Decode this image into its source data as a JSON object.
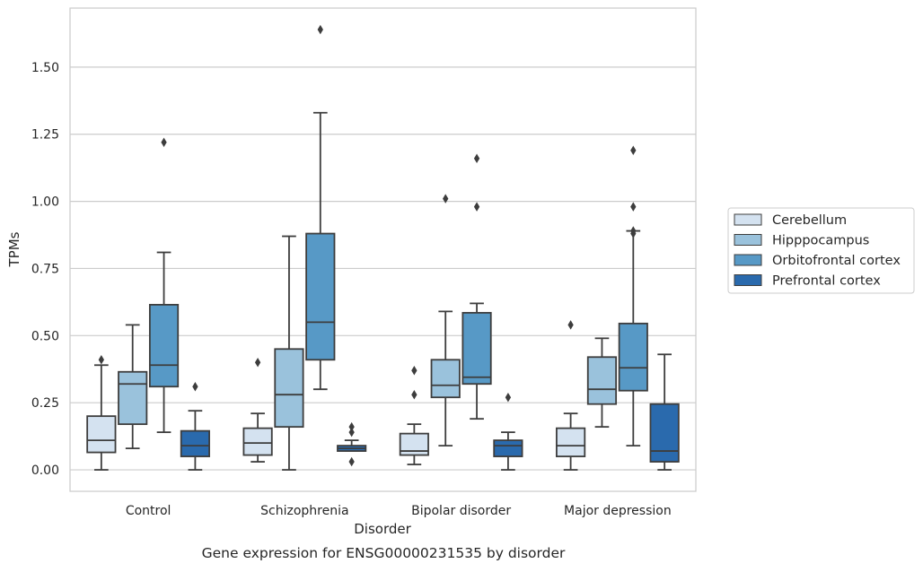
{
  "chart_data": {
    "type": "boxplot",
    "title": "",
    "caption": "Gene expression for ENSG00000231535 by disorder",
    "xlabel": "Disorder",
    "ylabel": "TPMs",
    "ylim": [
      -0.08,
      1.72
    ],
    "y_ticks": [
      0.0,
      0.25,
      0.5,
      0.75,
      1.0,
      1.25,
      1.5
    ],
    "y_tick_labels": [
      "0.00",
      "0.25",
      "0.50",
      "0.75",
      "1.00",
      "1.25",
      "1.50"
    ],
    "grid": "horizontal",
    "legend_position": "outside-right",
    "categories": [
      "Control",
      "Schizophrenia",
      "Bipolar disorder",
      "Major depression"
    ],
    "series": [
      {
        "name": "Cerebellum",
        "color": "#d4e2f0",
        "boxes": [
          {
            "whisker_low": 0.0,
            "q1": 0.065,
            "median": 0.11,
            "q3": 0.2,
            "whisker_high": 0.39,
            "outliers": [
              0.41
            ]
          },
          {
            "whisker_low": 0.03,
            "q1": 0.055,
            "median": 0.1,
            "q3": 0.155,
            "whisker_high": 0.21,
            "outliers": [
              0.4
            ]
          },
          {
            "whisker_low": 0.02,
            "q1": 0.055,
            "median": 0.07,
            "q3": 0.135,
            "whisker_high": 0.17,
            "outliers": [
              0.28,
              0.37
            ]
          },
          {
            "whisker_low": 0.0,
            "q1": 0.05,
            "median": 0.09,
            "q3": 0.155,
            "whisker_high": 0.21,
            "outliers": [
              0.54
            ]
          }
        ]
      },
      {
        "name": "Hipppocampus",
        "color": "#9ac2dc",
        "boxes": [
          {
            "whisker_low": 0.08,
            "q1": 0.17,
            "median": 0.32,
            "q3": 0.365,
            "whisker_high": 0.54,
            "outliers": []
          },
          {
            "whisker_low": 0.0,
            "q1": 0.16,
            "median": 0.28,
            "q3": 0.45,
            "whisker_high": 0.87,
            "outliers": []
          },
          {
            "whisker_low": 0.09,
            "q1": 0.27,
            "median": 0.315,
            "q3": 0.41,
            "whisker_high": 0.59,
            "outliers": [
              1.01
            ]
          },
          {
            "whisker_low": 0.16,
            "q1": 0.245,
            "median": 0.3,
            "q3": 0.42,
            "whisker_high": 0.49,
            "outliers": []
          }
        ]
      },
      {
        "name": "Orbitofrontal cortex",
        "color": "#5799c6",
        "boxes": [
          {
            "whisker_low": 0.14,
            "q1": 0.31,
            "median": 0.39,
            "q3": 0.615,
            "whisker_high": 0.81,
            "outliers": [
              1.22
            ]
          },
          {
            "whisker_low": 0.3,
            "q1": 0.41,
            "median": 0.55,
            "q3": 0.88,
            "whisker_high": 1.33,
            "outliers": [
              1.64
            ]
          },
          {
            "whisker_low": 0.19,
            "q1": 0.32,
            "median": 0.345,
            "q3": 0.585,
            "whisker_high": 0.62,
            "outliers": [
              0.98,
              1.16
            ]
          },
          {
            "whisker_low": 0.09,
            "q1": 0.295,
            "median": 0.38,
            "q3": 0.545,
            "whisker_high": 0.89,
            "outliers": [
              0.88,
              0.89,
              0.98,
              1.19
            ]
          }
        ]
      },
      {
        "name": "Prefrontal cortex",
        "color": "#2a6aad",
        "boxes": [
          {
            "whisker_low": 0.0,
            "q1": 0.05,
            "median": 0.09,
            "q3": 0.145,
            "whisker_high": 0.22,
            "outliers": [
              0.31
            ]
          },
          {
            "whisker_low": 0.07,
            "q1": 0.07,
            "median": 0.08,
            "q3": 0.09,
            "whisker_high": 0.11,
            "outliers": [
              0.03,
              0.14,
              0.16
            ]
          },
          {
            "whisker_low": 0.0,
            "q1": 0.05,
            "median": 0.09,
            "q3": 0.11,
            "whisker_high": 0.14,
            "outliers": [
              0.27
            ]
          },
          {
            "whisker_low": 0.0,
            "q1": 0.03,
            "median": 0.07,
            "q3": 0.245,
            "whisker_high": 0.43,
            "outliers": []
          }
        ]
      }
    ]
  }
}
